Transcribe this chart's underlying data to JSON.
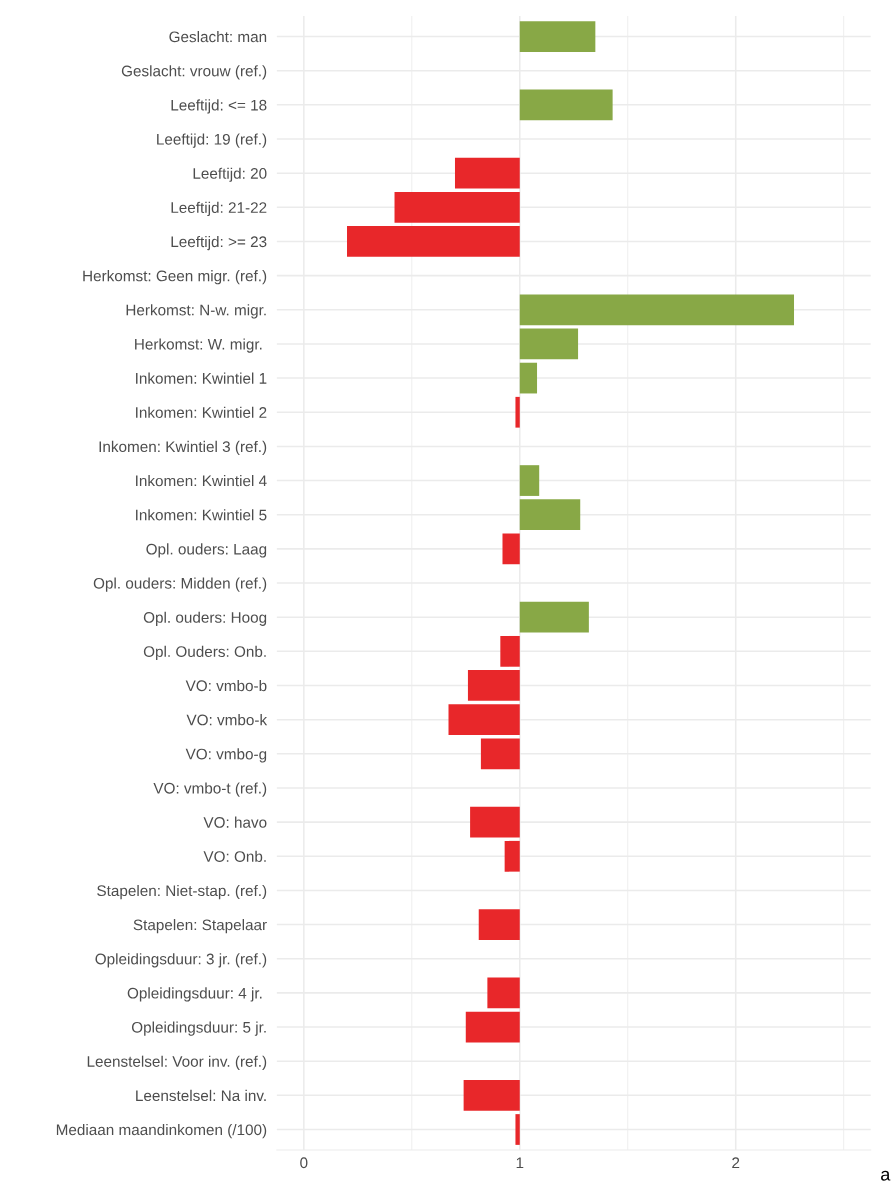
{
  "chart_data": {
    "type": "bar",
    "orientation": "horizontal",
    "categories": [
      "Geslacht: man",
      "Geslacht: vrouw (ref.)",
      "Leeftijd: <= 18",
      "Leeftijd: 19 (ref.)",
      "Leeftijd: 20",
      "Leeftijd: 21-22",
      "Leeftijd: >= 23",
      "Herkomst: Geen migr. (ref.)",
      "Herkomst: N-w. migr.",
      "Herkomst: W. migr. ",
      "Inkomen: Kwintiel 1",
      "Inkomen: Kwintiel 2",
      "Inkomen: Kwintiel 3 (ref.)",
      "Inkomen: Kwintiel 4",
      "Inkomen: Kwintiel 5",
      "Opl. ouders: Laag",
      "Opl. ouders: Midden (ref.)",
      "Opl. ouders: Hoog",
      "Opl. Ouders: Onb.",
      "VO: vmbo-b",
      "VO: vmbo-k",
      "VO: vmbo-g",
      "VO: vmbo-t (ref.)",
      "VO: havo",
      "VO: Onb.",
      "Stapelen: Niet-stap. (ref.)",
      "Stapelen: Stapelaar",
      "Opleidingsduur: 3 jr. (ref.)",
      "Opleidingsduur: 4 jr. ",
      "Opleidingsduur: 5 jr.",
      "Leenstelsel: Voor inv. (ref.)",
      "Leenstelsel: Na inv.",
      "Mediaan maandinkomen (/100)"
    ],
    "values": [
      0.35,
      null,
      0.43,
      null,
      -0.3,
      -0.58,
      -0.8,
      null,
      1.27,
      0.27,
      0.08,
      -0.02,
      null,
      0.09,
      0.28,
      -0.08,
      null,
      0.32,
      -0.09,
      -0.24,
      -0.33,
      -0.18,
      null,
      -0.23,
      -0.07,
      null,
      -0.19,
      null,
      -0.15,
      -0.25,
      null,
      -0.26,
      -0.02
    ],
    "base": [
      1,
      null,
      1,
      null,
      1,
      1,
      1,
      null,
      1,
      1,
      1,
      1,
      null,
      1,
      1,
      1,
      null,
      1,
      1,
      1,
      1,
      1,
      null,
      1,
      1,
      null,
      1,
      null,
      1,
      1,
      null,
      1,
      1
    ],
    "colors": [
      "#88a846",
      null,
      "#88a846",
      null,
      "#e8272a",
      "#e8272a",
      "#e8272a",
      null,
      "#88a846",
      "#88a846",
      "#88a846",
      "#e8272a",
      null,
      "#88a846",
      "#88a846",
      "#e8272a",
      null,
      "#88a846",
      "#e8272a",
      "#e8272a",
      "#e8272a",
      "#e8272a",
      null,
      "#e8272a",
      "#e8272a",
      null,
      "#e8272a",
      null,
      "#e8272a",
      "#e8272a",
      null,
      "#e8272a",
      "#e8272a"
    ],
    "xlim": [
      -0.125,
      2.625
    ],
    "xticks": [
      0,
      {
        "value": 0.5,
        "label": null
      },
      1,
      {
        "value": 1.5,
        "label": null
      },
      2,
      {
        "value": 2.5,
        "label": null
      }
    ],
    "grid": true,
    "annotations": [
      "a"
    ]
  }
}
